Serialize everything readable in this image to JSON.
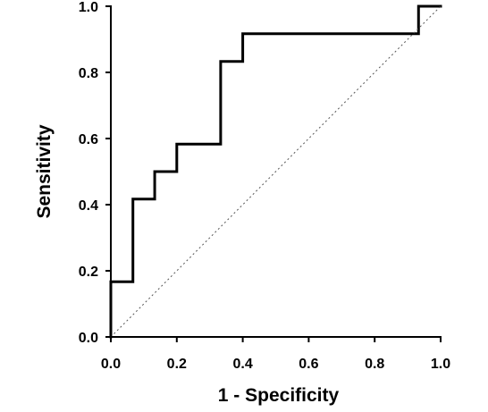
{
  "chart_data": {
    "type": "line",
    "title": "",
    "xlabel": "1 - Specificity",
    "ylabel": "Sensitivity",
    "xlim": [
      0.0,
      1.0
    ],
    "ylim": [
      0.0,
      1.0
    ],
    "x_ticks": [
      0.0,
      0.2,
      0.4,
      0.6,
      0.8,
      1.0
    ],
    "y_ticks": [
      0.0,
      0.2,
      0.4,
      0.6,
      0.8,
      1.0
    ],
    "x_tick_labels": [
      "0.0",
      "0.2",
      "0.4",
      "0.6",
      "0.8",
      "1.0"
    ],
    "y_tick_labels": [
      "0.0",
      "0.2",
      "0.4",
      "0.6",
      "0.8",
      "1.0"
    ],
    "grid": false,
    "legend": "none",
    "series": [
      {
        "style": "solid",
        "color": "#000000",
        "x": [
          0.0,
          0.0,
          0.067,
          0.067,
          0.133,
          0.133,
          0.2,
          0.2,
          0.333,
          0.333,
          0.4,
          0.4,
          0.933,
          0.933,
          1.0
        ],
        "y": [
          0.0,
          0.167,
          0.167,
          0.417,
          0.417,
          0.5,
          0.5,
          0.583,
          0.583,
          0.833,
          0.833,
          0.917,
          0.917,
          1.0,
          1.0
        ]
      },
      {
        "style": "dotted",
        "color": "#555555",
        "x": [
          0.0,
          1.0
        ],
        "y": [
          0.0,
          1.0
        ]
      }
    ]
  }
}
